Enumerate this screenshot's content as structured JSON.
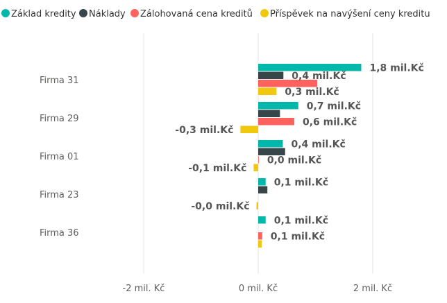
{
  "chart_data": {
    "type": "bar",
    "orientation": "horizontal",
    "categories": [
      "Firma 31",
      "Firma 29",
      "Firma 01",
      "Firma 23",
      "Firma 36"
    ],
    "series": [
      {
        "name": "Základ kredity",
        "color": "#01b8aa",
        "values": [
          1.8,
          0.7,
          0.43,
          0.13,
          0.13
        ]
      },
      {
        "name": "Náklady",
        "color": "#374649",
        "values": [
          0.44,
          0.38,
          0.47,
          0.16,
          0.0
        ]
      },
      {
        "name": "Zálohovaná cena kreditů",
        "color": "#fd625e",
        "values": [
          1.03,
          0.63,
          0.01,
          0.0,
          0.07
        ]
      },
      {
        "name": "Příspěvek na navýšení ceny kreditu",
        "color": "#f2c80f",
        "values": [
          0.32,
          -0.31,
          -0.08,
          -0.03,
          0.06
        ]
      }
    ],
    "data_labels": [
      {
        "category": "Firma 31",
        "series": "Základ kredity",
        "text": "1,8 mil.Kč"
      },
      {
        "category": "Firma 31",
        "series": "Náklady",
        "text": "0,4 mil.Kč"
      },
      {
        "category": "Firma 31",
        "series": "Příspěvek na navýšení ceny kreditu",
        "text": "0,3 mil.Kč"
      },
      {
        "category": "Firma 29",
        "series": "Základ kredity",
        "text": "0,7 mil.Kč"
      },
      {
        "category": "Firma 29",
        "series": "Zálohovaná cena kreditů",
        "text": "0,6 mil.Kč"
      },
      {
        "category": "Firma 29",
        "series": "Příspěvek na navýšení ceny kreditu",
        "text": "-0,3 mil.Kč"
      },
      {
        "category": "Firma 01",
        "series": "Základ kredity",
        "text": "0,4 mil.Kč"
      },
      {
        "category": "Firma 01",
        "series": "Zálohovaná cena kreditů",
        "text": "0,0 mil.Kč"
      },
      {
        "category": "Firma 01",
        "series": "Příspěvek na navýšení ceny kreditu",
        "text": "-0,1 mil.Kč"
      },
      {
        "category": "Firma 23",
        "series": "Základ kredity",
        "text": "0,1 mil.Kč"
      },
      {
        "category": "Firma 23",
        "series": "Příspěvek na navýšení ceny kreditu",
        "text": "-0,0 mil.Kč"
      },
      {
        "category": "Firma 36",
        "series": "Základ kredity",
        "text": "0,1 mil.Kč"
      },
      {
        "category": "Firma 36",
        "series": "Zálohovaná cena kreditů",
        "text": "0,1 mil.Kč"
      }
    ],
    "x_ticks": [
      {
        "value": -2,
        "label": "-2 mil. Kč"
      },
      {
        "value": 0,
        "label": "0 mil. Kč"
      },
      {
        "value": 2,
        "label": "2 mil. Kč"
      }
    ],
    "xlim": [
      -4.45,
      3.11
    ],
    "grid": true,
    "legend_position": "top-left",
    "title": "",
    "xlabel": "",
    "ylabel": ""
  }
}
